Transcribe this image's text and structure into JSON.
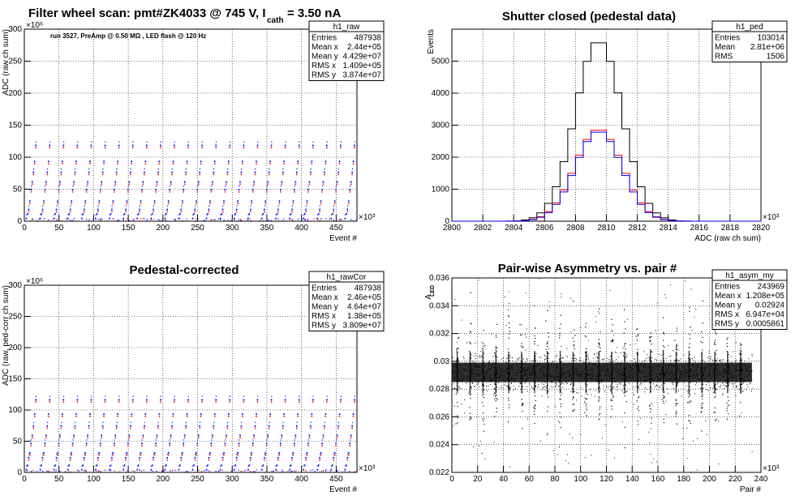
{
  "chart_data": [
    {
      "type": "scatter",
      "title": "Filter wheel scan: pmt#ZK4033 @   745 V, I",
      "title_sub": "cath",
      "title_tail": "  = 3.50 nA",
      "annotation": "run 3527, PreAmp @ 0.50 MΩ , LED flash @  120 Hz",
      "xlabel": "Event #",
      "ylabel": "ADC (raw ch sum)",
      "x_exponent": "×10³",
      "y_exponent": "×10⁶",
      "xlim": [
        0,
        480
      ],
      "ylim": [
        0,
        300
      ],
      "xticks": [
        "0",
        "50",
        "100",
        "150",
        "200",
        "250",
        "300",
        "350",
        "400",
        "450"
      ],
      "yticks": [
        "0",
        "50",
        "100",
        "150",
        "200",
        "250",
        "300"
      ],
      "cycle_period": 20,
      "levels": [
        3,
        10,
        17,
        30,
        48,
        60,
        75,
        92,
        117
      ],
      "series": [
        {
          "name": "",
          "color": "#0000ff"
        },
        {
          "name": "",
          "color": "#ff0000"
        }
      ],
      "stats": {
        "name": "h1_raw",
        "rows": [
          {
            "label": "Entries",
            "value": "487938"
          },
          {
            "label": "Mean x",
            "value": "2.44e+05"
          },
          {
            "label": "Mean y",
            "value": "4.429e+07"
          },
          {
            "label": "RMS x",
            "value": "1.409e+05"
          },
          {
            "label": "RMS y",
            "value": "3.874e+07"
          }
        ]
      }
    },
    {
      "type": "line",
      "title": "Shutter closed (pedestal data)",
      "xlabel": "ADC (raw ch sum)",
      "ylabel": "Events",
      "x_exponent": "×10³",
      "xlim": [
        2800,
        2820
      ],
      "ylim": [
        0,
        6000
      ],
      "xticks": [
        "2800",
        "2802",
        "2804",
        "2806",
        "2808",
        "2810",
        "2812",
        "2814",
        "2816",
        "2818",
        "2820"
      ],
      "yticks": [
        "0",
        "1000",
        "2000",
        "3000",
        "4000",
        "5000"
      ],
      "mean": 2809.5,
      "series": [
        {
          "name": "",
          "color": "#000000",
          "peak": 5650,
          "sigma": 1.51
        },
        {
          "name": "",
          "color": "#ff0000",
          "peak": 2880,
          "sigma": 1.53
        },
        {
          "name": "",
          "color": "#0000ff",
          "peak": 2820,
          "sigma": 1.5
        }
      ],
      "stats": {
        "name": "h1_ped",
        "rows": [
          {
            "label": "Entries",
            "value": "103014"
          },
          {
            "label": "Mean",
            "value": "2.81e+06"
          },
          {
            "label": "RMS",
            "value": "1506"
          }
        ]
      }
    },
    {
      "type": "scatter",
      "title": "Pedestal-corrected",
      "xlabel": "Event #",
      "ylabel": "ADC (raw, ped-corr ch sum)",
      "x_exponent": "×10³",
      "y_exponent": "×10⁶",
      "xlim": [
        0,
        480
      ],
      "ylim": [
        0,
        300
      ],
      "xticks": [
        "0",
        "50",
        "100",
        "150",
        "200",
        "250",
        "300",
        "350",
        "400",
        "450"
      ],
      "yticks": [
        "0",
        "50",
        "100",
        "150",
        "200",
        "250",
        "300"
      ],
      "cycle_period": 20,
      "levels": [
        3,
        10,
        22,
        30,
        45,
        58,
        73,
        92,
        115
      ],
      "series": [
        {
          "name": "",
          "color": "#0000ff"
        },
        {
          "name": "",
          "color": "#ff0000"
        }
      ],
      "stats": {
        "name": "h1_rawCor",
        "rows": [
          {
            "label": "Entries",
            "value": "487938"
          },
          {
            "label": "Mean x",
            "value": "2.46e+05"
          },
          {
            "label": "Mean y",
            "value": "4.64e+07"
          },
          {
            "label": "RMS x",
            "value": "1.38e+05"
          },
          {
            "label": "RMS y",
            "value": "3.809e+07"
          }
        ]
      }
    },
    {
      "type": "scatter",
      "title": "Pair-wise Asymmetry vs. pair #",
      "xlabel": "Pair #",
      "ylabel": "A",
      "ylabel_sub": "LED",
      "x_exponent": "×10³",
      "xlim": [
        0,
        240
      ],
      "ylim": [
        0.022,
        0.036
      ],
      "xticks": [
        "0",
        "20",
        "40",
        "60",
        "80",
        "100",
        "120",
        "140",
        "160",
        "180",
        "200",
        "220",
        "240"
      ],
      "yticks": [
        "0.022",
        "0.024",
        "0.026",
        "0.028",
        "0.03",
        "0.032",
        "0.034",
        "0.036"
      ],
      "band_center": 0.0292,
      "band_halfwidth": 0.0007,
      "cycle_period": 10,
      "data_range": [
        0,
        233
      ],
      "series": [
        {
          "name": "",
          "color": "#000000"
        }
      ],
      "stats": {
        "name": "h1_asym_my",
        "rows": [
          {
            "label": "Entries",
            "value": "243969"
          },
          {
            "label": "Mean x",
            "value": "1.208e+05"
          },
          {
            "label": "Mean y",
            "value": "0.02924"
          },
          {
            "label": "RMS x",
            "value": "6.947e+04"
          },
          {
            "label": "RMS y",
            "value": "0.0005861"
          }
        ]
      }
    }
  ]
}
